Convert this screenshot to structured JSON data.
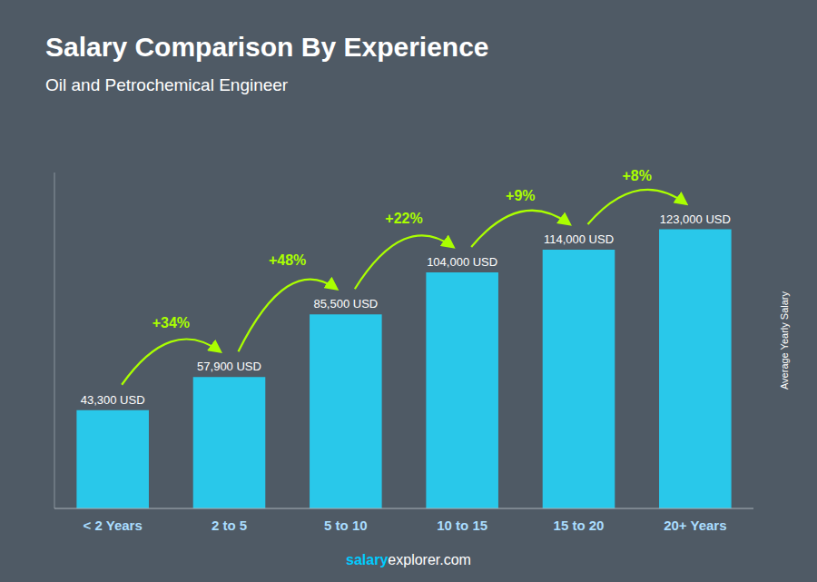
{
  "chart_data": {
    "type": "bar",
    "title": "Salary Comparison By Experience",
    "subtitle": "Oil and Petrochemical Engineer",
    "ylabel": "Average Yearly Salary",
    "categories": [
      "< 2 Years",
      "2 to 5",
      "5 to 10",
      "10 to 15",
      "15 to 20",
      "20+ Years"
    ],
    "values": [
      43300,
      57900,
      85500,
      104000,
      114000,
      123000
    ],
    "value_labels": [
      "43,300 USD",
      "57,900 USD",
      "85,500 USD",
      "104,000 USD",
      "114,000 USD",
      "123,000 USD"
    ],
    "data_labels": true,
    "annotations": [
      "+34%",
      "+48%",
      "+22%",
      "+9%",
      "+8%"
    ],
    "footer": [
      "salary",
      "explorer.com"
    ],
    "color": "#29c8ea",
    "ylim": [
      0,
      148000
    ],
    "tick_labels": "x",
    "grid": false
  }
}
